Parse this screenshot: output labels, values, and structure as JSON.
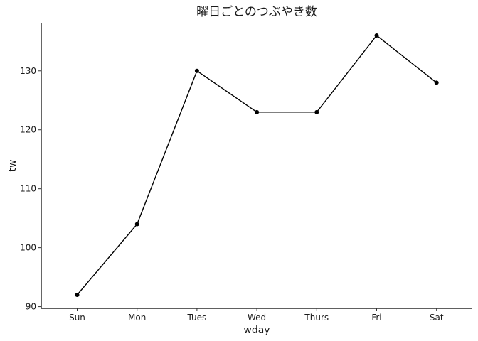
{
  "chart_data": {
    "type": "line",
    "title": "曜日ごとのつぶやき数",
    "xlabel": "wday",
    "ylabel": "tw",
    "categories": [
      "Sun",
      "Mon",
      "Tues",
      "Wed",
      "Thurs",
      "Fri",
      "Sat"
    ],
    "values": [
      92,
      104,
      130,
      123,
      123,
      136,
      128
    ],
    "yticks": [
      90,
      100,
      110,
      120,
      130
    ],
    "ylim": [
      89.8,
      138.2
    ],
    "grid": false,
    "legend": "none",
    "colors": {
      "line": "#000000",
      "point": "#000000"
    }
  }
}
